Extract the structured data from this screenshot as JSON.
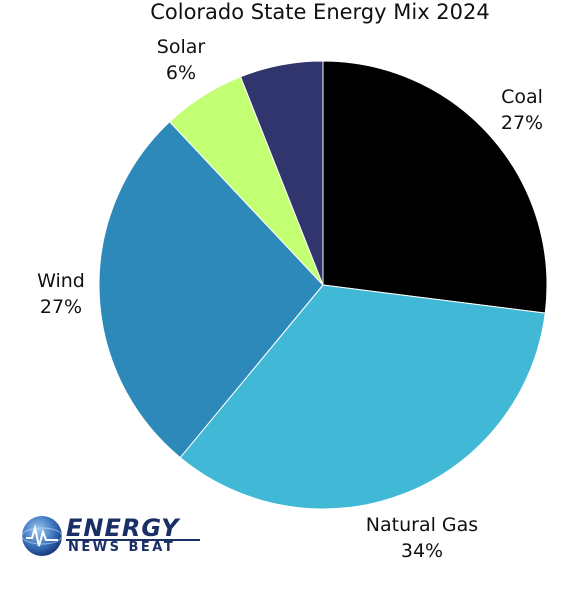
{
  "chart_data": {
    "type": "pie",
    "title": "Colorado State Energy Mix 2024",
    "slices": [
      {
        "label": "Coal",
        "value": 27,
        "display": "27%",
        "color": "#000000"
      },
      {
        "label": "Natural Gas",
        "value": 34,
        "display": "34%",
        "color": "#41b8d6"
      },
      {
        "label": "Wind",
        "value": 27,
        "display": "27%",
        "color": "#2d89b9"
      },
      {
        "label": "Solar",
        "value": 6,
        "display": "6%",
        "color": "#c2ff73"
      },
      {
        "label": "",
        "value": 6,
        "display": "",
        "color": "#31356e"
      }
    ],
    "start_angle_deg": 0,
    "direction": "clockwise"
  },
  "logo": {
    "brand": "ENERGY",
    "sub": "NEWS BEAT"
  }
}
